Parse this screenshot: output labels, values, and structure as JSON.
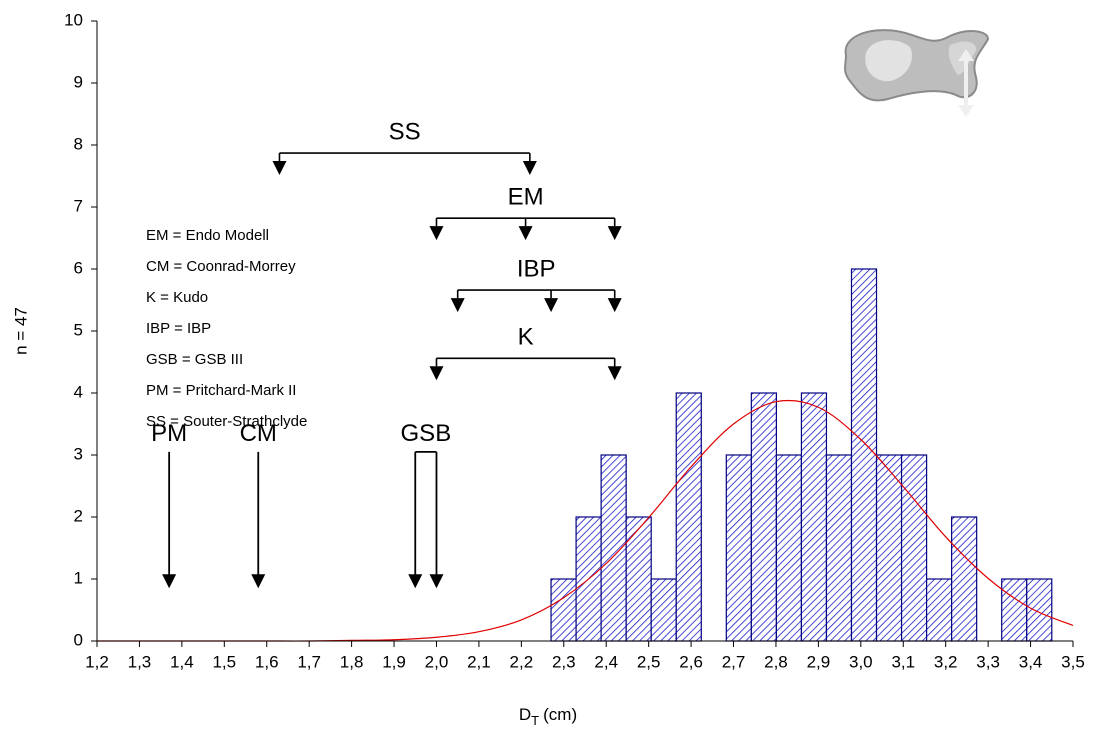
{
  "chart_data": {
    "type": "histogram",
    "ylabel": "n = 47",
    "xlabel": {
      "main": "D",
      "sub": "T",
      "unit": "(cm)"
    },
    "bins": [
      2.27,
      2.329,
      2.388,
      2.447,
      2.506,
      2.565,
      2.624,
      2.683,
      2.742,
      2.801,
      2.86,
      2.919,
      2.978,
      3.037,
      3.096,
      3.155,
      3.214,
      3.273,
      3.332,
      3.391,
      3.45
    ],
    "values": [
      1,
      2,
      3,
      2,
      1,
      4,
      0,
      3,
      4,
      3,
      4,
      3,
      6,
      3,
      3,
      1,
      2,
      0,
      1,
      1
    ],
    "color": "#1a1acc",
    "edge_color": "#000080",
    "curve": {
      "color": "#e00000",
      "x": [
        1.2,
        1.3,
        1.4,
        1.5,
        1.6,
        1.7,
        1.8,
        1.9,
        2.0,
        2.1,
        2.2,
        2.3,
        2.4,
        2.5,
        2.6,
        2.7,
        2.8,
        2.9,
        3.0,
        3.1,
        3.2,
        3.3,
        3.4,
        3.5
      ],
      "y": [
        0,
        0,
        0,
        0,
        0,
        0,
        0.01,
        0.02,
        0.06,
        0.15,
        0.34,
        0.7,
        1.25,
        1.99,
        2.81,
        3.5,
        3.86,
        3.77,
        3.25,
        2.49,
        1.68,
        1.01,
        0.53,
        0.25
      ]
    },
    "xlim": [
      1.2,
      3.5
    ],
    "ylim": [
      0,
      10
    ],
    "xticks": [
      {
        "value": 1.2,
        "label": "1,2"
      },
      {
        "value": 1.3,
        "label": "1,3"
      },
      {
        "value": 1.4,
        "label": "1,4"
      },
      {
        "value": 1.5,
        "label": "1,5"
      },
      {
        "value": 1.6,
        "label": "1,6"
      },
      {
        "value": 1.7,
        "label": "1,7"
      },
      {
        "value": 1.8,
        "label": "1,8"
      },
      {
        "value": 1.9,
        "label": "1,9"
      },
      {
        "value": 2.0,
        "label": "2,0"
      },
      {
        "value": 2.1,
        "label": "2,1"
      },
      {
        "value": 2.2,
        "label": "2,2"
      },
      {
        "value": 2.3,
        "label": "2,3"
      },
      {
        "value": 2.4,
        "label": "2,4"
      },
      {
        "value": 2.5,
        "label": "2,5"
      },
      {
        "value": 2.6,
        "label": "2,6"
      },
      {
        "value": 2.7,
        "label": "2,7"
      },
      {
        "value": 2.8,
        "label": "2,8"
      },
      {
        "value": 2.9,
        "label": "2,9"
      },
      {
        "value": 3.0,
        "label": "3,0"
      },
      {
        "value": 3.1,
        "label": "3,1"
      },
      {
        "value": 3.2,
        "label": "3,2"
      },
      {
        "value": 3.3,
        "label": "3,3"
      },
      {
        "value": 3.4,
        "label": "3,4"
      },
      {
        "value": 3.5,
        "label": "3,5"
      }
    ],
    "yticks": [
      0,
      1,
      2,
      3,
      4,
      5,
      6,
      7,
      8,
      9,
      10
    ],
    "brackets": [
      {
        "label": "SS",
        "x": [
          1.63,
          2.22
        ],
        "y": 7.87
      },
      {
        "label": "EM",
        "x": [
          2.0,
          2.21,
          2.42
        ],
        "y": 6.82
      },
      {
        "label": "IBP",
        "x": [
          2.05,
          2.27,
          2.42
        ],
        "y": 5.66
      },
      {
        "label": "K",
        "x": [
          2.0,
          2.42
        ],
        "y": 4.56
      }
    ],
    "pointers": [
      {
        "label": "PM",
        "x": [
          1.37
        ],
        "y": 3.05,
        "tip": 0.85
      },
      {
        "label": "CM",
        "x": [
          1.58
        ],
        "y": 3.05,
        "tip": 0.85
      },
      {
        "label": "GSB",
        "x": [
          1.95,
          2.0
        ],
        "y": 3.05,
        "tip": 0.85
      }
    ],
    "legend_text": [
      "EM = Endo Modell",
      "CM = Coonrad-Morrey",
      "K  = Kudo",
      "IBP = IBP",
      "GSB = GSB III",
      "PM  = Pritchard-Mark II",
      "SS  = Souter-Strathclyde"
    ]
  }
}
